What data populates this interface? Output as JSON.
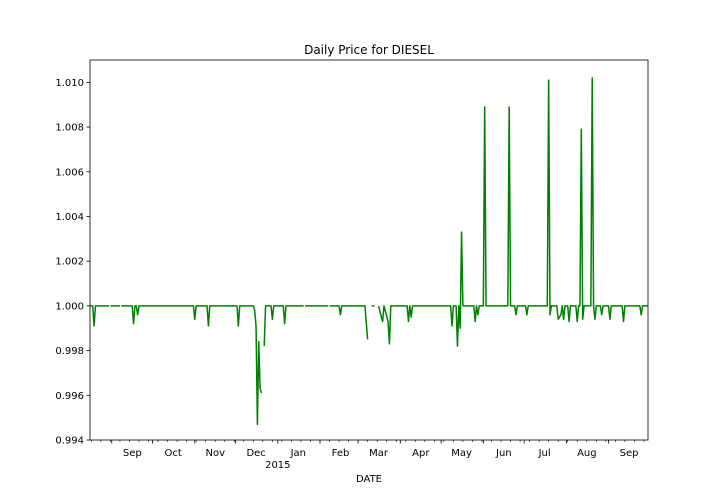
{
  "chart_data": {
    "type": "line",
    "title": "Daily Price for DIESEL",
    "xlabel": "DATE",
    "ylabel": "",
    "ylim": [
      0.994,
      1.011
    ],
    "xlim": [
      "2014-08-16",
      "2015-09-30"
    ],
    "grid": false,
    "legend": "none",
    "y_ticks": [
      "0.994",
      "0.996",
      "0.998",
      "1.000",
      "1.002",
      "1.004",
      "1.006",
      "1.008",
      "1.010"
    ],
    "x_ticks": [
      {
        "date": "2014-09-01",
        "label": "Sep",
        "sub": ""
      },
      {
        "date": "2014-10-01",
        "label": "Oct",
        "sub": ""
      },
      {
        "date": "2014-11-01",
        "label": "Nov",
        "sub": ""
      },
      {
        "date": "2014-12-01",
        "label": "Dec",
        "sub": ""
      },
      {
        "date": "2015-01-01",
        "label": "Jan",
        "sub": "2015"
      },
      {
        "date": "2015-02-01",
        "label": "Feb",
        "sub": ""
      },
      {
        "date": "2015-03-01",
        "label": "Mar",
        "sub": ""
      },
      {
        "date": "2015-04-01",
        "label": "Apr",
        "sub": ""
      },
      {
        "date": "2015-05-01",
        "label": "May",
        "sub": ""
      },
      {
        "date": "2015-06-01",
        "label": "Jun",
        "sub": ""
      },
      {
        "date": "2015-07-01",
        "label": "Jul",
        "sub": ""
      },
      {
        "date": "2015-08-01",
        "label": "Aug",
        "sub": ""
      },
      {
        "date": "2015-09-01",
        "label": "Sep",
        "sub": ""
      }
    ],
    "series": [
      {
        "color": "#008000",
        "segments": [
          [
            [
              "2014-08-16",
              1.0
            ],
            [
              "2014-08-18",
              1.0
            ],
            [
              "2014-08-19",
              0.9991
            ],
            [
              "2014-08-20",
              1.0
            ],
            [
              "2014-08-30",
              1.0
            ]
          ],
          [
            [
              "2014-08-31",
              1.0
            ],
            [
              "2014-09-07",
              1.0
            ]
          ],
          [
            [
              "2014-09-08",
              1.0
            ],
            [
              "2014-09-16",
              1.0
            ],
            [
              "2014-09-17",
              0.9992
            ],
            [
              "2014-09-18",
              1.0
            ],
            [
              "2014-09-19",
              1.0
            ],
            [
              "2014-09-20",
              0.9996
            ],
            [
              "2014-09-21",
              1.0
            ],
            [
              "2014-10-31",
              1.0
            ],
            [
              "2014-11-01",
              0.9994
            ],
            [
              "2014-11-02",
              1.0
            ],
            [
              "2014-11-10",
              1.0
            ],
            [
              "2014-11-11",
              0.9991
            ],
            [
              "2014-11-12",
              1.0
            ],
            [
              "2014-12-02",
              1.0
            ],
            [
              "2014-12-03",
              0.9991
            ],
            [
              "2014-12-04",
              1.0
            ],
            [
              "2014-12-14",
              1.0
            ],
            [
              "2014-12-15",
              0.9998
            ],
            [
              "2014-12-16",
              0.9991
            ],
            [
              "2014-12-17",
              0.9947
            ],
            [
              "2014-12-18",
              0.9984
            ],
            [
              "2014-12-19",
              0.9963
            ],
            [
              "2014-12-20",
              0.9961
            ]
          ],
          [
            [
              "2014-12-22",
              0.9982
            ],
            [
              "2014-12-23",
              1.0
            ],
            [
              "2014-12-27",
              1.0
            ],
            [
              "2014-12-28",
              0.9994
            ],
            [
              "2014-12-29",
              1.0
            ],
            [
              "2015-01-05",
              1.0
            ],
            [
              "2015-01-06",
              0.9992
            ],
            [
              "2015-01-07",
              1.0
            ],
            [
              "2015-01-20",
              1.0
            ]
          ],
          [
            [
              "2015-01-21",
              1.0
            ],
            [
              "2015-02-07",
              1.0
            ]
          ],
          [
            [
              "2015-02-08",
              1.0
            ],
            [
              "2015-02-15",
              1.0
            ],
            [
              "2015-02-16",
              0.9996
            ],
            [
              "2015-02-17",
              1.0
            ],
            [
              "2015-03-06",
              1.0
            ],
            [
              "2015-03-08",
              0.9985
            ]
          ],
          [
            [
              "2015-03-11",
              1.0
            ],
            [
              "2015-03-13",
              1.0
            ]
          ],
          [
            [
              "2015-03-16",
              1.0
            ],
            [
              "2015-03-19",
              0.9993
            ],
            [
              "2015-03-20",
              1.0
            ],
            [
              "2015-03-23",
              0.9993
            ],
            [
              "2015-03-24",
              0.9983
            ],
            [
              "2015-03-25",
              1.0
            ],
            [
              "2015-04-06",
              1.0
            ],
            [
              "2015-04-07",
              0.9993
            ],
            [
              "2015-04-08",
              1.0
            ],
            [
              "2015-04-09",
              0.9995
            ],
            [
              "2015-04-10",
              1.0
            ],
            [
              "2015-05-08",
              1.0
            ],
            [
              "2015-05-09",
              0.9991
            ],
            [
              "2015-05-10",
              1.0
            ],
            [
              "2015-05-12",
              1.0
            ],
            [
              "2015-05-13",
              0.9982
            ],
            [
              "2015-05-14",
              1.0
            ],
            [
              "2015-05-15",
              0.999
            ],
            [
              "2015-05-16",
              1.0033
            ],
            [
              "2015-05-17",
              1.0
            ],
            [
              "2015-05-25",
              1.0
            ],
            [
              "2015-05-26",
              0.9993
            ],
            [
              "2015-05-27",
              1.0
            ],
            [
              "2015-05-28",
              0.9996
            ],
            [
              "2015-05-29",
              1.0
            ],
            [
              "2015-06-01",
              1.0
            ],
            [
              "2015-06-02",
              1.0089
            ],
            [
              "2015-06-03",
              1.0
            ],
            [
              "2015-06-19",
              1.0
            ],
            [
              "2015-06-20",
              1.0089
            ],
            [
              "2015-06-21",
              1.0
            ],
            [
              "2015-06-24",
              1.0
            ],
            [
              "2015-06-25",
              0.9996
            ],
            [
              "2015-06-26",
              1.0
            ],
            [
              "2015-07-02",
              1.0
            ],
            [
              "2015-07-03",
              0.9996
            ],
            [
              "2015-07-04",
              1.0
            ],
            [
              "2015-07-18",
              1.0
            ],
            [
              "2015-07-19",
              1.0101
            ],
            [
              "2015-07-20",
              0.9996
            ],
            [
              "2015-07-21",
              1.0
            ],
            [
              "2015-07-25",
              1.0
            ],
            [
              "2015-07-26",
              0.9994
            ],
            [
              "2015-07-28",
              0.9996
            ],
            [
              "2015-07-29",
              1.0
            ],
            [
              "2015-07-30",
              0.9994
            ],
            [
              "2015-07-31",
              1.0
            ],
            [
              "2015-08-02",
              1.0
            ],
            [
              "2015-08-03",
              0.9993
            ],
            [
              "2015-08-04",
              1.0
            ],
            [
              "2015-08-08",
              1.0
            ],
            [
              "2015-08-09",
              0.9993
            ],
            [
              "2015-08-10",
              1.0
            ],
            [
              "2015-08-11",
              1.0
            ],
            [
              "2015-08-12",
              1.0079
            ],
            [
              "2015-08-13",
              0.9994
            ],
            [
              "2015-08-14",
              1.0
            ],
            [
              "2015-08-19",
              1.0
            ],
            [
              "2015-08-20",
              1.0102
            ],
            [
              "2015-08-21",
              1.0
            ],
            [
              "2015-08-22",
              0.9994
            ],
            [
              "2015-08-23",
              1.0
            ],
            [
              "2015-08-26",
              1.0
            ],
            [
              "2015-08-27",
              0.9996
            ],
            [
              "2015-08-28",
              1.0
            ],
            [
              "2015-09-01",
              1.0
            ],
            [
              "2015-09-02",
              0.9994
            ],
            [
              "2015-09-03",
              1.0
            ],
            [
              "2015-09-11",
              1.0
            ],
            [
              "2015-09-12",
              0.9993
            ],
            [
              "2015-09-13",
              1.0
            ],
            [
              "2015-09-24",
              1.0
            ],
            [
              "2015-09-25",
              0.9996
            ],
            [
              "2015-09-26",
              1.0
            ],
            [
              "2015-09-30",
              1.0
            ]
          ]
        ]
      }
    ]
  }
}
